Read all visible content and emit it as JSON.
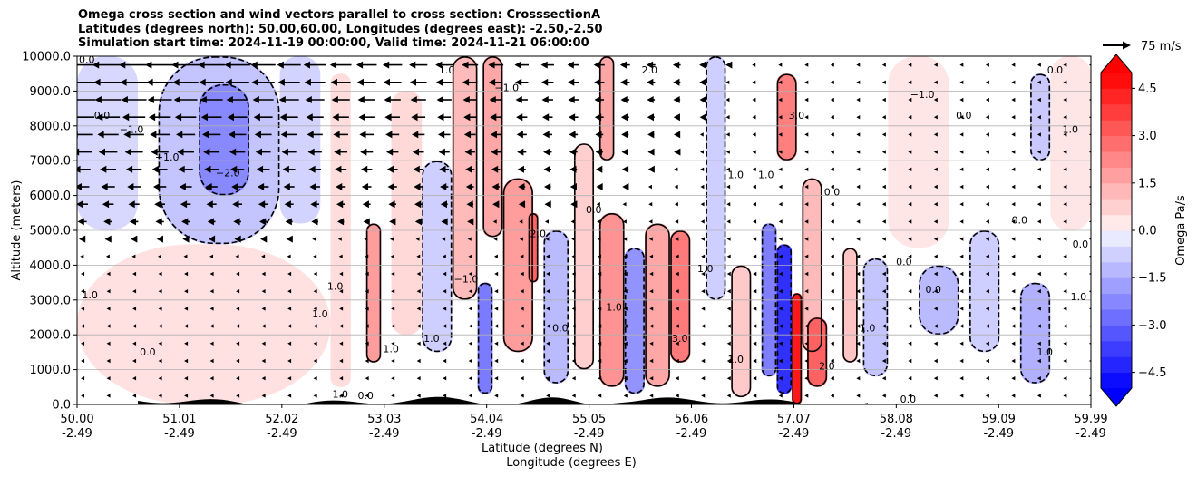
{
  "title_lines": [
    "Omega cross section and wind vectors parallel to cross section: CrosssectionA",
    "Latitudes (degrees north): 50.00,60.00, Longitudes (degrees east): -2.50,-2.50",
    "Simulation start time: 2024-11-19 00:00:00, Valid time: 2024-11-21 06:00:00"
  ],
  "chart_data": {
    "type": "heatmap",
    "title": "Omega cross section and wind vectors parallel to cross section: CrosssectionA",
    "xlabel_lines": [
      "Latitude (degrees N)",
      "Longitude (degrees E)"
    ],
    "ylabel": "Altitude (meters)",
    "x_ticks": [
      {
        "pos": 0.0,
        "lat": "50.00",
        "lon": "-2.49"
      },
      {
        "pos": 0.101,
        "lat": "51.01",
        "lon": "-2.49"
      },
      {
        "pos": 0.202,
        "lat": "52.02",
        "lon": "-2.49"
      },
      {
        "pos": 0.303,
        "lat": "53.03",
        "lon": "-2.49"
      },
      {
        "pos": 0.404,
        "lat": "54.04",
        "lon": "-2.49"
      },
      {
        "pos": 0.505,
        "lat": "55.05",
        "lon": "-2.49"
      },
      {
        "pos": 0.606,
        "lat": "56.06",
        "lon": "-2.49"
      },
      {
        "pos": 0.707,
        "lat": "57.07",
        "lon": "-2.49"
      },
      {
        "pos": 0.808,
        "lat": "58.08",
        "lon": "-2.49"
      },
      {
        "pos": 0.909,
        "lat": "59.09",
        "lon": "-2.49"
      },
      {
        "pos": 1.0,
        "lat": "59.99",
        "lon": "-2.49"
      }
    ],
    "y_ticks": [
      0,
      1000,
      2000,
      3000,
      4000,
      5000,
      6000,
      7000,
      8000,
      9000,
      10000
    ],
    "y_tick_labels": [
      "0.0",
      "1000.0",
      "2000.0",
      "3000.0",
      "4000.0",
      "5000.0",
      "6000.0",
      "7000.0",
      "8000.0",
      "9000.0",
      "10000.0"
    ],
    "ylim": [
      0,
      10000
    ],
    "grid": "horizontal",
    "colorbar": {
      "label": "Omega Pa/s",
      "min": -5.0,
      "max": 5.0,
      "step": 0.5,
      "ticks": [
        4.5,
        3.0,
        1.5,
        0.0,
        -1.5,
        -3.0,
        -4.5
      ],
      "tick_labels": [
        "4.5",
        "3.0",
        "1.5",
        "0.0",
        "−1.5",
        "−3.0",
        "−4.5"
      ],
      "extend": "both",
      "positive_color": "#ff0000",
      "negative_color": "#0000ff"
    },
    "quiver_key": {
      "label": "75 m/s"
    },
    "omega_cells": [
      {
        "x0": 0.0,
        "x1": 0.06,
        "y0": 5000,
        "y1": 10000,
        "v": -0.6
      },
      {
        "x0": 0.08,
        "x1": 0.2,
        "y0": 4600,
        "y1": 10000,
        "v": -1.0
      },
      {
        "x0": 0.12,
        "x1": 0.17,
        "y0": 6000,
        "y1": 9200,
        "v": -2.2
      },
      {
        "x0": 0.2,
        "x1": 0.24,
        "y0": 5200,
        "y1": 10000,
        "v": -0.7
      },
      {
        "x0": 0.0,
        "x1": 0.25,
        "y0": 0,
        "y1": 4600,
        "v": 0.4
      },
      {
        "x0": 0.25,
        "x1": 0.27,
        "y0": 500,
        "y1": 9500,
        "v": 0.5
      },
      {
        "x0": 0.285,
        "x1": 0.3,
        "y0": 1200,
        "y1": 5200,
        "v": 1.8
      },
      {
        "x0": 0.31,
        "x1": 0.34,
        "y0": 2000,
        "y1": 9000,
        "v": 0.6
      },
      {
        "x0": 0.34,
        "x1": 0.37,
        "y0": 1500,
        "y1": 7000,
        "v": -0.8
      },
      {
        "x0": 0.37,
        "x1": 0.395,
        "y0": 3000,
        "y1": 10000,
        "v": 1.2
      },
      {
        "x0": 0.4,
        "x1": 0.42,
        "y0": 4800,
        "y1": 10000,
        "v": 1.6
      },
      {
        "x0": 0.395,
        "x1": 0.41,
        "y0": 300,
        "y1": 3500,
        "v": -2.5
      },
      {
        "x0": 0.42,
        "x1": 0.45,
        "y0": 1500,
        "y1": 6500,
        "v": 1.8
      },
      {
        "x0": 0.445,
        "x1": 0.455,
        "y0": 3500,
        "y1": 5500,
        "v": 3.0
      },
      {
        "x0": 0.46,
        "x1": 0.485,
        "y0": 600,
        "y1": 5000,
        "v": -1.2
      },
      {
        "x0": 0.49,
        "x1": 0.51,
        "y0": 1000,
        "y1": 7500,
        "v": 0.8
      },
      {
        "x0": 0.515,
        "x1": 0.54,
        "y0": 500,
        "y1": 5500,
        "v": 2.0
      },
      {
        "x0": 0.515,
        "x1": 0.53,
        "y0": 7000,
        "y1": 10000,
        "v": 1.6
      },
      {
        "x0": 0.54,
        "x1": 0.56,
        "y0": 300,
        "y1": 4500,
        "v": -2.0
      },
      {
        "x0": 0.56,
        "x1": 0.585,
        "y0": 500,
        "y1": 5200,
        "v": 1.6
      },
      {
        "x0": 0.585,
        "x1": 0.605,
        "y0": 1200,
        "y1": 5000,
        "v": 2.5
      },
      {
        "x0": 0.62,
        "x1": 0.64,
        "y0": 3000,
        "y1": 10000,
        "v": -0.8
      },
      {
        "x0": 0.645,
        "x1": 0.665,
        "y0": 200,
        "y1": 4000,
        "v": 0.9
      },
      {
        "x0": 0.675,
        "x1": 0.69,
        "y0": 800,
        "y1": 5200,
        "v": -2.4
      },
      {
        "x0": 0.69,
        "x1": 0.705,
        "y0": 300,
        "y1": 4600,
        "v": -4.0
      },
      {
        "x0": 0.705,
        "x1": 0.715,
        "y0": 0,
        "y1": 3200,
        "v": 4.5
      },
      {
        "x0": 0.69,
        "x1": 0.71,
        "y0": 7000,
        "y1": 9500,
        "v": 2.4
      },
      {
        "x0": 0.715,
        "x1": 0.735,
        "y0": 1500,
        "y1": 6500,
        "v": 1.2
      },
      {
        "x0": 0.72,
        "x1": 0.74,
        "y0": 500,
        "y1": 2500,
        "v": 3.0
      },
      {
        "x0": 0.755,
        "x1": 0.77,
        "y0": 1200,
        "y1": 4500,
        "v": 1.0
      },
      {
        "x0": 0.775,
        "x1": 0.8,
        "y0": 800,
        "y1": 4200,
        "v": -1.0
      },
      {
        "x0": 0.8,
        "x1": 0.86,
        "y0": 4500,
        "y1": 10000,
        "v": 0.3
      },
      {
        "x0": 0.83,
        "x1": 0.87,
        "y0": 2000,
        "y1": 4000,
        "v": -1.2
      },
      {
        "x0": 0.88,
        "x1": 0.91,
        "y0": 1500,
        "y1": 5000,
        "v": -0.8
      },
      {
        "x0": 0.93,
        "x1": 0.96,
        "y0": 600,
        "y1": 3500,
        "v": -1.4
      },
      {
        "x0": 0.96,
        "x1": 1.0,
        "y0": 5000,
        "y1": 10000,
        "v": 0.3
      },
      {
        "x0": 0.94,
        "x1": 0.96,
        "y0": 7000,
        "y1": 9500,
        "v": -0.9
      }
    ],
    "contour_labels": [
      {
        "x": 0.003,
        "y": 3050,
        "text": "1.0"
      },
      {
        "x": 0.135,
        "y": 6550,
        "text": "−2.0"
      },
      {
        "x": 0.0,
        "y": 9800,
        "text": "0.0"
      },
      {
        "x": 0.015,
        "y": 8200,
        "text": "0.0"
      },
      {
        "x": 0.04,
        "y": 7800,
        "text": "−1.0"
      },
      {
        "x": 0.06,
        "y": 1400,
        "text": "0.0"
      },
      {
        "x": 0.075,
        "y": 7000,
        "text": "−1.0"
      },
      {
        "x": 0.245,
        "y": 3300,
        "text": "1.0"
      },
      {
        "x": 0.23,
        "y": 2500,
        "text": "1.0"
      },
      {
        "x": 0.3,
        "y": 1500,
        "text": "1.0"
      },
      {
        "x": 0.34,
        "y": 1800,
        "text": "1.0"
      },
      {
        "x": 0.355,
        "y": 9500,
        "text": "1.0"
      },
      {
        "x": 0.37,
        "y": 3500,
        "text": "−1.0"
      },
      {
        "x": 0.41,
        "y": 9000,
        "text": "−1.0"
      },
      {
        "x": 0.445,
        "y": 4800,
        "text": "2.0"
      },
      {
        "x": 0.467,
        "y": 2100,
        "text": "0.0"
      },
      {
        "x": 0.52,
        "y": 2700,
        "text": "1.0"
      },
      {
        "x": 0.555,
        "y": 9500,
        "text": "2.0"
      },
      {
        "x": 0.5,
        "y": 5500,
        "text": "0.0"
      },
      {
        "x": 0.585,
        "y": 1800,
        "text": "3.0"
      },
      {
        "x": 0.61,
        "y": 3800,
        "text": "1.0"
      },
      {
        "x": 0.64,
        "y": 1200,
        "text": "1.0"
      },
      {
        "x": 0.64,
        "y": 6500,
        "text": "1.0"
      },
      {
        "x": 0.67,
        "y": 6500,
        "text": "1.0"
      },
      {
        "x": 0.7,
        "y": 8200,
        "text": "3.0"
      },
      {
        "x": 0.73,
        "y": 1000,
        "text": "2.0"
      },
      {
        "x": 0.735,
        "y": 6000,
        "text": "0.0"
      },
      {
        "x": 0.77,
        "y": 2100,
        "text": "1.0"
      },
      {
        "x": 0.806,
        "y": 4000,
        "text": "0.0"
      },
      {
        "x": 0.82,
        "y": 8800,
        "text": "−1.0"
      },
      {
        "x": 0.835,
        "y": 3200,
        "text": "0.0"
      },
      {
        "x": 0.865,
        "y": 8200,
        "text": "0.0"
      },
      {
        "x": 0.92,
        "y": 5200,
        "text": "0.0"
      },
      {
        "x": 0.955,
        "y": 9500,
        "text": "0.0"
      },
      {
        "x": 0.97,
        "y": 7800,
        "text": "1.0"
      },
      {
        "x": 0.98,
        "y": 4500,
        "text": "0.0"
      },
      {
        "x": 0.97,
        "y": 3000,
        "text": "−1.0"
      },
      {
        "x": 0.945,
        "y": 1400,
        "text": "1.0"
      },
      {
        "x": 0.81,
        "y": 50,
        "text": "0.0"
      },
      {
        "x": 0.25,
        "y": 200,
        "text": "1.0"
      },
      {
        "x": 0.275,
        "y": 150,
        "text": "0.0"
      }
    ]
  }
}
